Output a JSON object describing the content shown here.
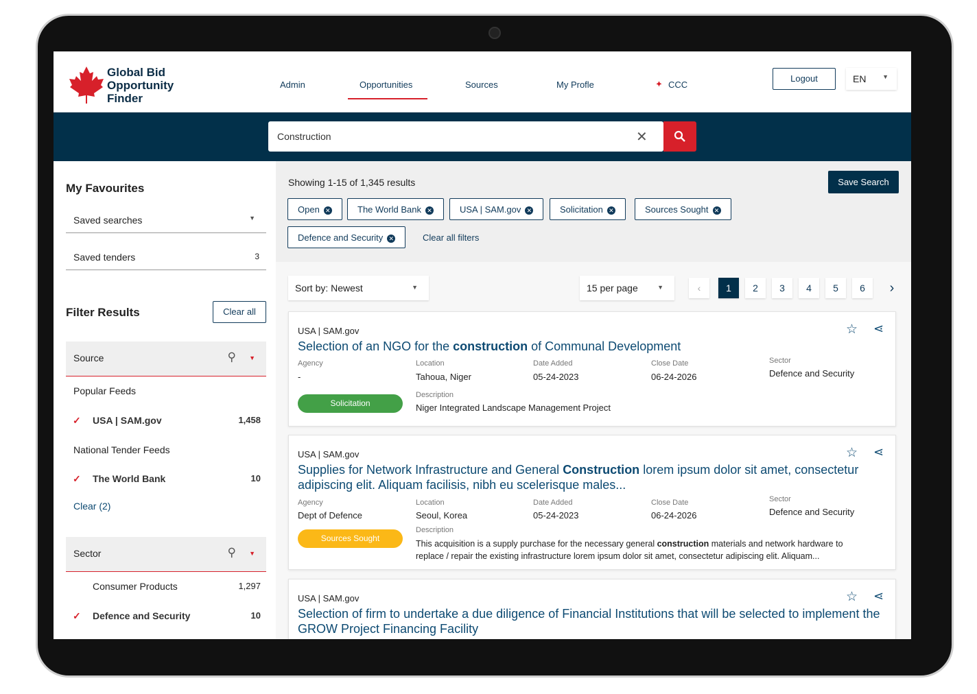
{
  "brand": {
    "name_line1": "Global Bid",
    "name_line2": "Opportunity",
    "name_line3": "Finder"
  },
  "nav": {
    "items": [
      "Admin",
      "Opportunities",
      "Sources",
      "My Profle",
      "CCC"
    ],
    "active": "Opportunities",
    "logout": "Logout",
    "language": "EN"
  },
  "search": {
    "value": "Construction"
  },
  "sidebar": {
    "favourites_title": "My Favourites",
    "saved_searches": "Saved searches",
    "saved_tenders": "Saved tenders",
    "saved_tenders_count": "3",
    "filter_title": "Filter Results",
    "clear_all": "Clear all",
    "source": {
      "label": "Source",
      "popular_feeds": "Popular Feeds",
      "popular": [
        {
          "label": "USA | SAM.gov",
          "count": "1,458"
        }
      ],
      "national_feeds": "National Tender Feeds",
      "national": [
        {
          "label": "The World Bank",
          "count": "10"
        }
      ],
      "clear": "Clear (2)"
    },
    "sector": {
      "label": "Sector",
      "items": [
        {
          "label": "Consumer Products",
          "count": "1,297",
          "checked": false
        },
        {
          "label": "Defence and Security",
          "count": "10",
          "checked": true
        }
      ]
    }
  },
  "results": {
    "showing": "Showing 1-15 of 1,345 results",
    "save_search": "Save Search",
    "chips": [
      "Open",
      "The World Bank",
      "USA | SAM.gov",
      "Solicitation",
      "Sources Sought",
      "Defence and Security"
    ],
    "clear_filters": "Clear all filters",
    "sort": "Sort by: Newest",
    "per_page": "15 per page",
    "pages": [
      "1",
      "2",
      "3",
      "4",
      "5",
      "6"
    ],
    "current_page": "1"
  },
  "labels": {
    "agency": "Agency",
    "location": "Location",
    "date_added": "Date Added",
    "close_date": "Close Date",
    "sector": "Sector",
    "description": "Description"
  },
  "cards": [
    {
      "source": "USA | SAM.gov",
      "title_a": "Selection of an NGO for the ",
      "title_b": "construction",
      "title_c": " of Communal Development",
      "agency": "-",
      "location": "Tahoua, Niger",
      "date_added": "05-24-2023",
      "close_date": "06-24-2026",
      "sector": "Defence and Security",
      "badge": "Solicitation",
      "badge_color": "#43a047",
      "desc_a": "Niger Integrated Landscape Management Project",
      "desc_b": "",
      "desc_c": ""
    },
    {
      "source": "USA | SAM.gov",
      "title_a": "Supplies for Network Infrastructure and General ",
      "title_b": "Construction",
      "title_c": " lorem ipsum dolor sit amet, consectetur adipiscing elit. Aliquam facilisis, nibh eu scelerisque males...",
      "agency": "Dept of Defence",
      "location": "Seoul, Korea",
      "date_added": "05-24-2023",
      "close_date": "06-24-2026",
      "sector": "Defence and Security",
      "badge": "Sources Sought",
      "badge_color": "#fbb817",
      "desc_a": "This acquisition is a supply purchase for the necessary general ",
      "desc_b": "construction",
      "desc_c": " materials and network hardware to replace / repair the existing infrastructure lorem ipsum dolor sit amet, consectetur adipiscing elit. Aliquam..."
    },
    {
      "source": "USA | SAM.gov",
      "title_a": "Selection of firm to undertake a due diligence of Financial Institutions that will be selected to implement the GROW Project Financing Facility",
      "title_b": "",
      "title_c": ""
    }
  ]
}
